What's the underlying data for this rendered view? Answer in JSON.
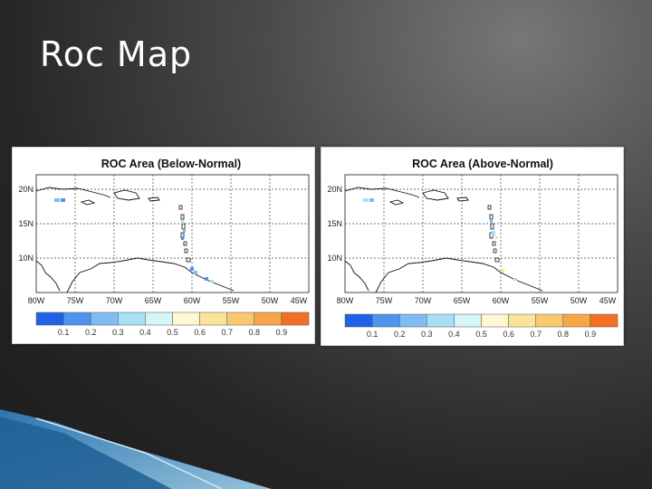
{
  "slide": {
    "title": "Roc Map"
  },
  "colorbar": {
    "colors": [
      "#1f62e6",
      "#4f93ee",
      "#7fbcf1",
      "#a9dff4",
      "#d4f6f8",
      "#fff7d2",
      "#fbe39a",
      "#f9c870",
      "#f7a648",
      "#f26f25"
    ],
    "ticks_left": [
      "0.1",
      "0.2",
      "0.3",
      "0.4",
      "0.5",
      "0.6",
      "0.7",
      "0.8",
      "0.9"
    ],
    "ticks_right": [
      "0.1",
      "0.2",
      "0.3",
      "0.4",
      "0.5",
      "0.6",
      "0.7",
      "0.8",
      "0.9"
    ]
  },
  "maps": {
    "left": {
      "title": "ROC Area (Below-Normal)",
      "lat_labels": [
        "20N",
        "15N",
        "10N"
      ],
      "lon_labels": [
        "80W",
        "75W",
        "70W",
        "65W",
        "60W",
        "55W",
        "50W",
        "45W"
      ]
    },
    "right": {
      "title": "ROC Area (Above-Normal)",
      "lat_labels": [
        "20N",
        "15N",
        "10N"
      ],
      "lon_labels": [
        "80W",
        "75W",
        "70W",
        "65W",
        "60W",
        "55W",
        "50W",
        "45W"
      ]
    }
  }
}
